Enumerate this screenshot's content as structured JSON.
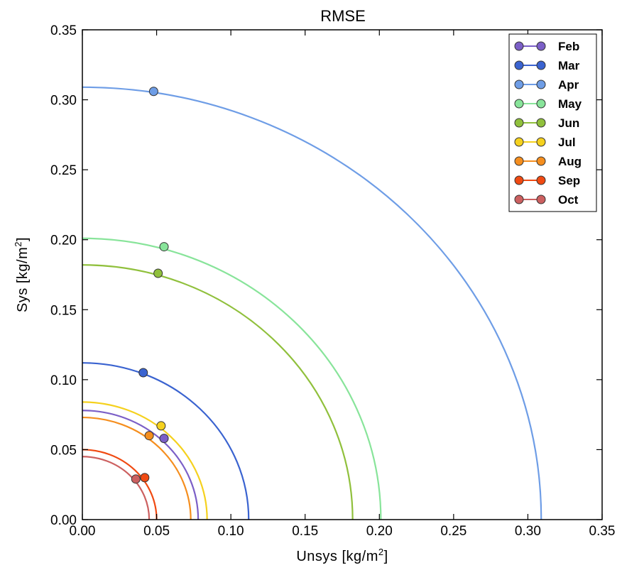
{
  "chart_data": {
    "type": "line",
    "title": "RMSE",
    "xlabel": "Unsys [kg/m",
    "ylabel": "Sys [kg/m",
    "unit_exponent": "2",
    "unit_close": "]",
    "xlim": [
      0.0,
      0.35
    ],
    "ylim": [
      0.0,
      0.35
    ],
    "xticks": [
      "0.00",
      "0.05",
      "0.10",
      "0.15",
      "0.20",
      "0.25",
      "0.30",
      "0.35"
    ],
    "yticks": [
      "0.00",
      "0.05",
      "0.10",
      "0.15",
      "0.20",
      "0.25",
      "0.30",
      "0.35"
    ],
    "grid": false,
    "legend_position": "top-right",
    "series": [
      {
        "name": "Feb",
        "color": "#7b5fc7",
        "radius": 0.078,
        "point": [
          0.055,
          0.058
        ]
      },
      {
        "name": "Mar",
        "color": "#3a63d0",
        "radius": 0.112,
        "point": [
          0.041,
          0.105
        ]
      },
      {
        "name": "Apr",
        "color": "#6e9de6",
        "radius": 0.309,
        "point": [
          0.048,
          0.306
        ]
      },
      {
        "name": "May",
        "color": "#88e49a",
        "radius": 0.201,
        "point": [
          0.055,
          0.195
        ]
      },
      {
        "name": "Jun",
        "color": "#90c03c",
        "radius": 0.182,
        "point": [
          0.051,
          0.176
        ]
      },
      {
        "name": "Jul",
        "color": "#f5d11e",
        "radius": 0.084,
        "point": [
          0.053,
          0.067
        ]
      },
      {
        "name": "Aug",
        "color": "#f58e1e",
        "radius": 0.073,
        "point": [
          0.045,
          0.06
        ]
      },
      {
        "name": "Sep",
        "color": "#f04a12",
        "radius": 0.05,
        "point": [
          0.042,
          0.03
        ]
      },
      {
        "name": "Oct",
        "color": "#cc6060",
        "radius": 0.045,
        "point": [
          0.036,
          0.029
        ]
      }
    ]
  }
}
